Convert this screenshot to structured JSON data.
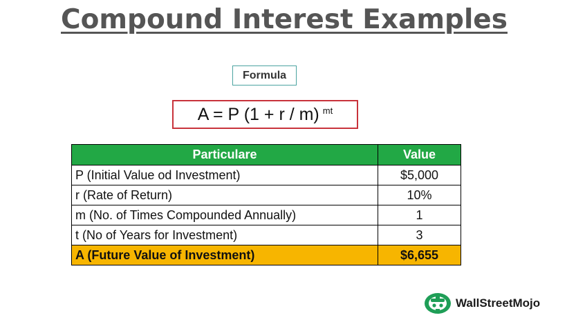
{
  "title": "Compound Interest Examples",
  "formula": {
    "label": "Formula",
    "expression": "A = P (1 + r / m)",
    "exponent": "mt"
  },
  "table": {
    "headers": [
      "Particulare",
      "Value"
    ],
    "rows": [
      {
        "label": "P (Initial Value od Investment)",
        "value": "$5,000"
      },
      {
        "label": "r (Rate of Return)",
        "value": "10%"
      },
      {
        "label": "m (No. of Times Compounded Annually)",
        "value": "1"
      },
      {
        "label": "t (No of Years for Investment)",
        "value": "3"
      }
    ],
    "total": {
      "label": "A (Future Value of Investment)",
      "value": "$6,655"
    }
  },
  "logo": {
    "text": "WallStreetMojo",
    "icon": "wallstreetmojo-logo-icon"
  },
  "colors": {
    "header_green": "#22a845",
    "total_yellow": "#f7b500",
    "formula_border_red": "#c8323a",
    "label_border_teal": "#4aa3a0",
    "title_gray": "#555555"
  }
}
